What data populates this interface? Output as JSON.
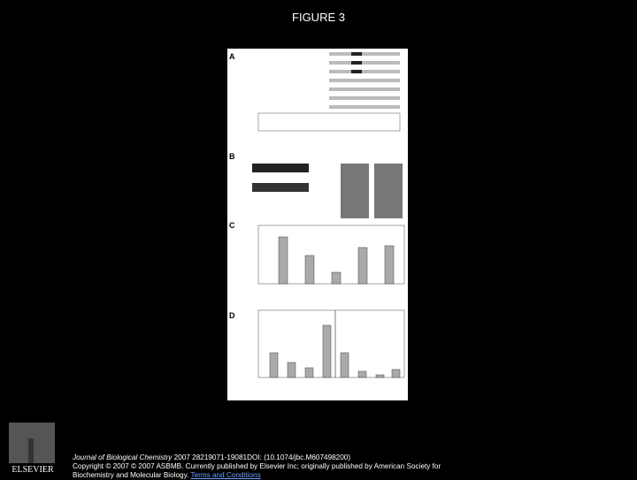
{
  "header": {
    "title": "FIGURE 3"
  },
  "figure": {
    "panels": [
      "A",
      "B",
      "C",
      "D"
    ]
  },
  "logo": {
    "text": "ELSEVIER"
  },
  "citation": {
    "journal": "Journal of Biological Chemistry",
    "details": " 2007 28219071-19081DOI: (10.1074/jbc.M607498200)",
    "copyright": "Copyright © 2007 © 2007 ASBMB. Currently published by Elsevier Inc; originally published by American Society for Biochemistry and Molecular Biology.",
    "link": "Terms and Conditions"
  }
}
